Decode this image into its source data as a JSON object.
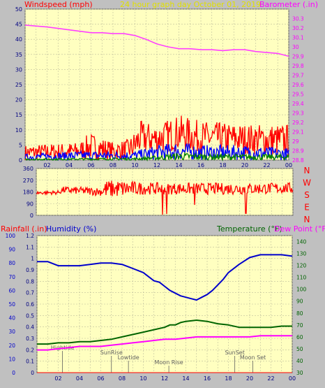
{
  "colors": {
    "background": "#c0c0c0",
    "plot_bg": "#ffffc0",
    "grid": "#bdbd9b",
    "wind": "#ff0000",
    "gust": "#0000ff",
    "wind_avg": "#008000",
    "barometer": "#ff40ff",
    "direction": "#ff0000",
    "humidity": "#0000cc",
    "temperature": "#006400",
    "dewpoint": "#ff00ff",
    "rainfall": "#ff0000",
    "events": "#606060"
  },
  "header": {
    "title": "24 hour graph day   October 01, 2019",
    "left_label": "Windspeed (mph)",
    "right_label": "Barometer (.in)"
  },
  "compass": [
    "N",
    "W",
    "S",
    "E",
    "N"
  ],
  "x_ticks": [
    "02",
    "04",
    "06",
    "08",
    "10",
    "12",
    "14",
    "16",
    "18",
    "20",
    "22",
    "00"
  ],
  "chart_data": [
    {
      "type": "line",
      "title": "24 hour graph day   October 01, 2019",
      "ylabel": "Windspeed (mph)",
      "y2label": "Barometer (.in)",
      "ylim": [
        0,
        50
      ],
      "y2lim": [
        28.8,
        30.4
      ],
      "yticks": [
        0,
        5,
        10,
        15,
        20,
        25,
        30,
        35,
        40,
        45,
        50
      ],
      "y2ticks": [
        "28.8",
        "28.9",
        "29",
        "29.1",
        "29.2",
        "29.3",
        "29.4",
        "29.5",
        "29.6",
        "29.7",
        "29.8",
        "29.9",
        "30",
        "30.1",
        "30.2",
        "30.3"
      ],
      "grid": true,
      "series": [
        {
          "name": "Windspeed (mph)",
          "axis": "left",
          "style": "noise",
          "envelope": {
            "x": [
              0,
              5,
              5.5,
              6,
              8,
              9.5,
              10,
              10.5,
              12,
              14,
              16,
              20,
              24
            ],
            "hi": [
              5,
              6,
              8,
              9,
              6,
              7,
              10,
              13,
              12,
              15,
              13,
              12,
              12
            ],
            "lo": [
              0,
              0,
              0,
              0,
              0,
              0,
              0,
              2,
              2,
              3,
              2,
              2,
              1
            ]
          }
        },
        {
          "name": "gust",
          "axis": "left",
          "style": "noise",
          "envelope": {
            "x": [
              0,
              5,
              10,
              12,
              14,
              16,
              20,
              24
            ],
            "hi": [
              2,
              3,
              3,
              5,
              6,
              5,
              5,
              4
            ],
            "lo": [
              0,
              0,
              0,
              0,
              0,
              0,
              0,
              0
            ]
          }
        },
        {
          "name": "average",
          "axis": "left",
          "style": "noise",
          "envelope": {
            "x": [
              0,
              10,
              12,
              14,
              16,
              20,
              24
            ],
            "hi": [
              0.5,
              0.8,
              1.5,
              2.5,
              2.2,
              2,
              2
            ],
            "lo": [
              0,
              0,
              0,
              0,
              0,
              0,
              0
            ]
          }
        },
        {
          "name": "Barometer (.in)",
          "axis": "right",
          "style": "line",
          "x": [
            0,
            2,
            4,
            6,
            7,
            8,
            9,
            10,
            11,
            12,
            13,
            14,
            15,
            16,
            17,
            18,
            19,
            20,
            21,
            22,
            23,
            24
          ],
          "y": [
            30.23,
            30.21,
            30.18,
            30.15,
            30.15,
            30.14,
            30.14,
            30.12,
            30.08,
            30.03,
            30.0,
            29.98,
            29.98,
            29.97,
            29.97,
            29.96,
            29.97,
            29.97,
            29.95,
            29.94,
            29.93,
            29.9
          ]
        }
      ]
    },
    {
      "type": "line",
      "ylabel": "",
      "ylim": [
        0,
        360
      ],
      "yticks": [
        0,
        90,
        180,
        270,
        360
      ],
      "grid": true,
      "series": [
        {
          "name": "Wind direction",
          "style": "noise",
          "envelope": {
            "x": [
              0,
              2,
              2.5,
              6,
              6.5,
              8,
              10,
              12,
              16,
              20,
              24
            ],
            "hi": [
              185,
              190,
              220,
              215,
              270,
              270,
              255,
              250,
              250,
              250,
              250
            ],
            "lo": [
              160,
              160,
              170,
              150,
              130,
              140,
              160,
              160,
              160,
              160,
              170
            ]
          },
          "spikes": [
            {
              "x": 11.8,
              "y": 5
            },
            {
              "x": 12.2,
              "y": 10
            },
            {
              "x": 14.8,
              "y": 80
            },
            {
              "x": 19.6,
              "y": 15
            }
          ]
        }
      ]
    },
    {
      "type": "line",
      "left_label": "Rainfall (.in)",
      "humidity_label": "Humidity (%)",
      "temp_label": "Temperature (°F)",
      "dew_label": "Dew Point (°F)",
      "rain_ylim": [
        0,
        1.2
      ],
      "rain_ticks": [
        "0",
        "0.1",
        "0.2",
        "0.3",
        "0.4",
        "0.5",
        "0.6",
        "0.7",
        "0.8",
        "0.9",
        "1",
        "1.1",
        "1.2"
      ],
      "hum_ylim": [
        0,
        100
      ],
      "hum_ticks": [
        0,
        10,
        20,
        30,
        40,
        50,
        60,
        70,
        80,
        90,
        100
      ],
      "temp_ylim": [
        30,
        145
      ],
      "temp_ticks": [
        30,
        40,
        50,
        60,
        70,
        80,
        90,
        100,
        110,
        120,
        130,
        140
      ],
      "grid": true,
      "series": [
        {
          "name": "Humidity (%)",
          "axis": "humidity",
          "x": [
            0,
            1,
            2,
            3,
            4,
            5,
            6,
            7,
            8,
            9,
            10,
            10.5,
            11,
            11.5,
            12,
            12.5,
            13,
            13.5,
            14,
            14.5,
            15,
            15.5,
            16,
            16.5,
            17,
            17.5,
            18,
            19,
            20,
            21,
            22,
            23,
            24
          ],
          "y": [
            81,
            81,
            78,
            78,
            78,
            79,
            80,
            80,
            79,
            76,
            73,
            70,
            67,
            66,
            63,
            60,
            58,
            56,
            55,
            54,
            53,
            55,
            57,
            60,
            64,
            68,
            73,
            79,
            84,
            86,
            86,
            86,
            85
          ]
        },
        {
          "name": "Temperature (°F)",
          "axis": "temp",
          "x": [
            0,
            1,
            2,
            3,
            4,
            5,
            6,
            7,
            8,
            9,
            10,
            11,
            12,
            12.5,
            13,
            13.5,
            14,
            15,
            16,
            17,
            18,
            19,
            20,
            21,
            22,
            23,
            24
          ],
          "y": [
            54,
            54,
            55,
            55,
            56,
            56,
            57,
            58,
            60,
            62,
            64,
            66,
            68,
            70,
            70,
            72,
            73,
            74,
            73,
            71,
            70,
            68,
            68,
            68,
            68,
            69,
            69
          ]
        },
        {
          "name": "Dew Point (°F)",
          "axis": "temp",
          "x": [
            0,
            1,
            2,
            3,
            4,
            5,
            6,
            7,
            8,
            9,
            10,
            11,
            12,
            13,
            14,
            15,
            16,
            17,
            18,
            19,
            20,
            21,
            22,
            23,
            24
          ],
          "y": [
            49,
            49,
            50,
            51,
            52,
            52,
            52,
            53,
            54,
            55,
            56,
            57,
            58,
            58,
            59,
            60,
            60,
            60,
            60,
            60,
            60,
            61,
            61,
            61,
            61
          ]
        },
        {
          "name": "Rainfall (.in)",
          "axis": "rain",
          "x": [
            0,
            24
          ],
          "y": [
            0,
            0
          ]
        }
      ],
      "events": [
        {
          "label": "Hightide",
          "x": 2.4,
          "row": 0
        },
        {
          "label": "SunRise",
          "x": 7.0,
          "row": 1
        },
        {
          "label": "Lowtide",
          "x": 8.6,
          "row": 2
        },
        {
          "label": "Moon Rise",
          "x": 12.4,
          "row": 3
        },
        {
          "label": "SunSet",
          "x": 18.6,
          "row": 1
        },
        {
          "label": "Moon Set",
          "x": 20.3,
          "row": 2
        }
      ]
    }
  ]
}
